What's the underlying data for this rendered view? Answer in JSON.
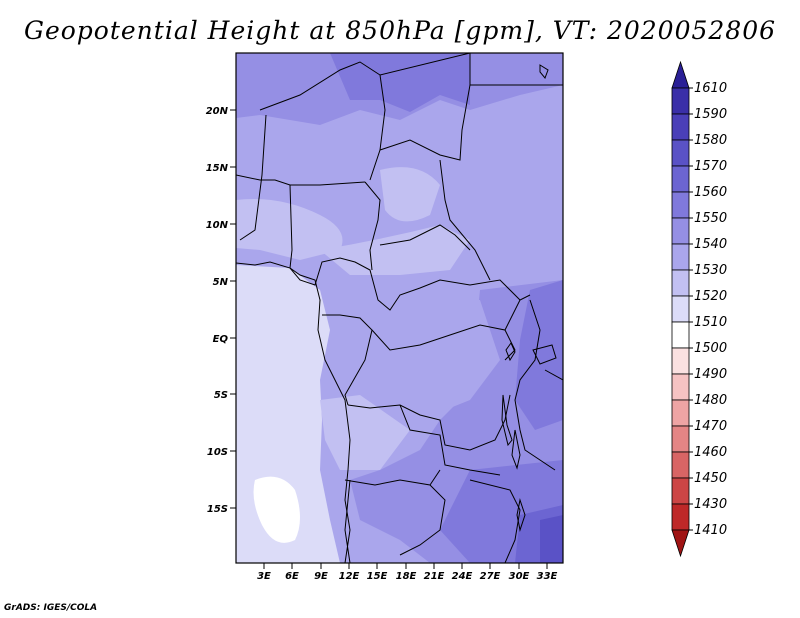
{
  "title": "Geopotential Height at 850hPa [gpm], VT: 2020052806",
  "credit": "GrADS: IGES/COLA",
  "map": {
    "lat_labels": [
      "20N",
      "15N",
      "10N",
      "5N",
      "EQ",
      "5S",
      "10S",
      "15S"
    ],
    "lon_labels": [
      "3E",
      "6E",
      "9E",
      "12E",
      "15E",
      "18E",
      "21E",
      "24E",
      "27E",
      "30E",
      "33E"
    ]
  },
  "colorbar": {
    "levels": [
      "1610",
      "1590",
      "1580",
      "1570",
      "1560",
      "1550",
      "1540",
      "1530",
      "1520",
      "1510",
      "1500",
      "1490",
      "1480",
      "1470",
      "1460",
      "1450",
      "1430",
      "1410"
    ],
    "colors": [
      "#2a1f96",
      "#3a2fa8",
      "#4a3fb8",
      "#5a52c6",
      "#6c65d2",
      "#8079dc",
      "#958fe4",
      "#aaa6ec",
      "#c2c0f2",
      "#dcdcf8",
      "#ffffff",
      "#fbe1e1",
      "#f6c3c3",
      "#eea4a4",
      "#e48585",
      "#d86565",
      "#cc4545",
      "#be2828",
      "#a01414"
    ]
  }
}
